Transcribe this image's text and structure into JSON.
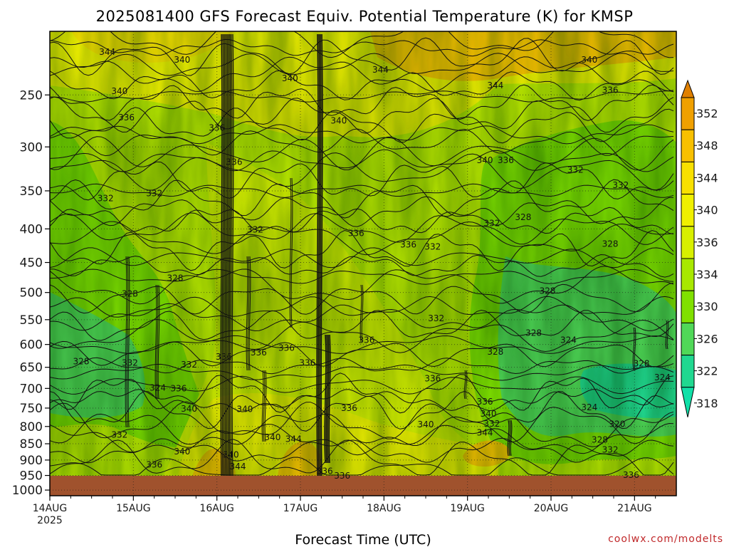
{
  "chart_data": {
    "type": "heatmap",
    "title": "2025081400 GFS Forecast Equiv. Potential Temperature (K) for KMSP",
    "xlabel": "Forecast Time (UTC)",
    "credit": "coolwx.com/modelts",
    "x_ticks": [
      {
        "label": "14AUG",
        "sublabel": "2025",
        "hours": 0
      },
      {
        "label": "15AUG",
        "sublabel": "",
        "hours": 24
      },
      {
        "label": "16AUG",
        "sublabel": "",
        "hours": 48
      },
      {
        "label": "17AUG",
        "sublabel": "",
        "hours": 72
      },
      {
        "label": "18AUG",
        "sublabel": "",
        "hours": 96
      },
      {
        "label": "19AUG",
        "sublabel": "",
        "hours": 120
      },
      {
        "label": "20AUG",
        "sublabel": "",
        "hours": 144
      },
      {
        "label": "21AUG",
        "sublabel": "",
        "hours": 168
      }
    ],
    "x_range_hours": [
      0,
      180
    ],
    "y_pressure_levels": [
      "250",
      "300",
      "350",
      "400",
      "450",
      "500",
      "550",
      "600",
      "650",
      "700",
      "750",
      "800",
      "850",
      "900",
      "950",
      "1000"
    ],
    "y_range_hpa": [
      200,
      1020
    ],
    "colorbar": {
      "labels": [
        "352",
        "348",
        "344",
        "340",
        "336",
        "334",
        "330",
        "326",
        "322",
        "318"
      ],
      "colors": [
        "#f0a000",
        "#f8c000",
        "#f8e000",
        "#f0f000",
        "#d8f000",
        "#a8e800",
        "#80e000",
        "#50d858",
        "#20d890"
      ]
    },
    "ground_color": "#a0522d",
    "contour_labels": [
      {
        "text": "344",
        "t": 16.5,
        "p": 216
      },
      {
        "text": "340",
        "t": 38,
        "p": 222
      },
      {
        "text": "340",
        "t": 69,
        "p": 237
      },
      {
        "text": "344",
        "t": 95,
        "p": 230
      },
      {
        "text": "344",
        "t": 128,
        "p": 243
      },
      {
        "text": "340",
        "t": 155,
        "p": 222
      },
      {
        "text": "340",
        "t": 20,
        "p": 248
      },
      {
        "text": "336",
        "t": 22,
        "p": 272
      },
      {
        "text": "336",
        "t": 48,
        "p": 282
      },
      {
        "text": "340",
        "t": 83,
        "p": 275
      },
      {
        "text": "336",
        "t": 161,
        "p": 247
      },
      {
        "text": "336",
        "t": 53,
        "p": 318
      },
      {
        "text": "340",
        "t": 125,
        "p": 316
      },
      {
        "text": "336",
        "t": 131,
        "p": 316
      },
      {
        "text": "332",
        "t": 151,
        "p": 327
      },
      {
        "text": "332",
        "t": 164,
        "p": 345
      },
      {
        "text": "332",
        "t": 16,
        "p": 361
      },
      {
        "text": "332",
        "t": 30,
        "p": 355
      },
      {
        "text": "328",
        "t": 136,
        "p": 386
      },
      {
        "text": "332",
        "t": 127,
        "p": 394
      },
      {
        "text": "332",
        "t": 59,
        "p": 403
      },
      {
        "text": "336",
        "t": 88,
        "p": 408
      },
      {
        "text": "336",
        "t": 103,
        "p": 425
      },
      {
        "text": "332",
        "t": 110,
        "p": 428
      },
      {
        "text": "328",
        "t": 161,
        "p": 424
      },
      {
        "text": "328",
        "t": 36,
        "p": 478
      },
      {
        "text": "328",
        "t": 23,
        "p": 505
      },
      {
        "text": "328",
        "t": 143,
        "p": 500
      },
      {
        "text": "332",
        "t": 111,
        "p": 550
      },
      {
        "text": "328",
        "t": 139,
        "p": 579
      },
      {
        "text": "336",
        "t": 60,
        "p": 620
      },
      {
        "text": "336",
        "t": 68,
        "p": 610
      },
      {
        "text": "336",
        "t": 91,
        "p": 594
      },
      {
        "text": "328",
        "t": 128,
        "p": 619
      },
      {
        "text": "324",
        "t": 149,
        "p": 594
      },
      {
        "text": "336",
        "t": 50,
        "p": 630
      },
      {
        "text": "328",
        "t": 9,
        "p": 640
      },
      {
        "text": "332",
        "t": 23,
        "p": 643
      },
      {
        "text": "336",
        "t": 74,
        "p": 643
      },
      {
        "text": "332",
        "t": 40,
        "p": 647
      },
      {
        "text": "328",
        "t": 170,
        "p": 645
      },
      {
        "text": "336",
        "t": 110,
        "p": 680
      },
      {
        "text": "324",
        "t": 176,
        "p": 677
      },
      {
        "text": "324",
        "t": 31,
        "p": 702
      },
      {
        "text": "336",
        "t": 37,
        "p": 704
      },
      {
        "text": "336",
        "t": 125,
        "p": 737
      },
      {
        "text": "340",
        "t": 40,
        "p": 756
      },
      {
        "text": "340",
        "t": 56,
        "p": 757
      },
      {
        "text": "336",
        "t": 86,
        "p": 754
      },
      {
        "text": "340",
        "t": 126,
        "p": 769
      },
      {
        "text": "324",
        "t": 155,
        "p": 752
      },
      {
        "text": "332",
        "t": 127,
        "p": 796
      },
      {
        "text": "340",
        "t": 108,
        "p": 798
      },
      {
        "text": "320",
        "t": 163,
        "p": 797
      },
      {
        "text": "344",
        "t": 125,
        "p": 822
      },
      {
        "text": "332",
        "t": 20,
        "p": 828
      },
      {
        "text": "340",
        "t": 64,
        "p": 835
      },
      {
        "text": "344",
        "t": 70,
        "p": 840
      },
      {
        "text": "328",
        "t": 158,
        "p": 843
      },
      {
        "text": "332",
        "t": 161,
        "p": 873
      },
      {
        "text": "340",
        "t": 38,
        "p": 878
      },
      {
        "text": "340",
        "t": 52,
        "p": 888
      },
      {
        "text": "336",
        "t": 30,
        "p": 920
      },
      {
        "text": "344",
        "t": 54,
        "p": 925
      },
      {
        "text": "336",
        "t": 79,
        "p": 940
      },
      {
        "text": "336",
        "t": 84,
        "p": 956
      },
      {
        "text": "336",
        "t": 167,
        "p": 953
      }
    ]
  }
}
